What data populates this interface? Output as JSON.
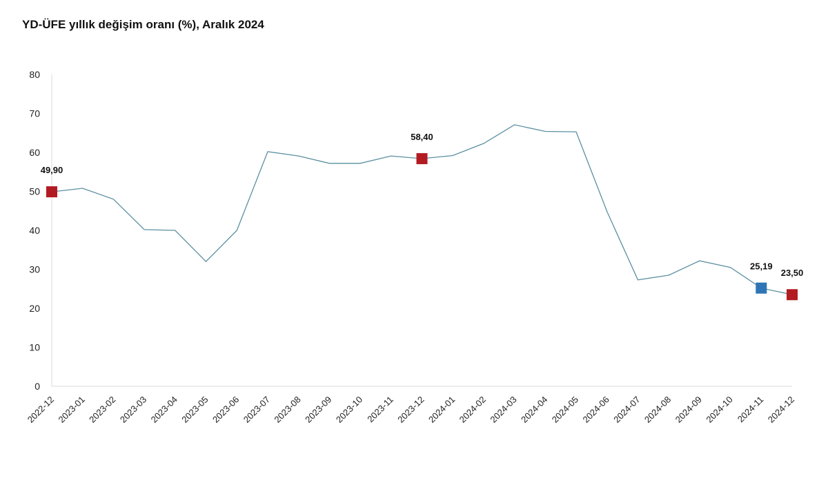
{
  "chart_data": {
    "type": "line",
    "title": "YD-ÜFE yıllık değişim oranı (%), Aralık 2024",
    "x": [
      "2022-12",
      "2023-01",
      "2023-02",
      "2023-03",
      "2023-04",
      "2023-05",
      "2023-06",
      "2023-07",
      "2023-08",
      "2023-09",
      "2023-10",
      "2023-11",
      "2023-12",
      "2024-01",
      "2024-02",
      "2024-03",
      "2024-04",
      "2024-05",
      "2024-06",
      "2024-07",
      "2024-08",
      "2024-09",
      "2024-10",
      "2024-11",
      "2024-12"
    ],
    "series": [
      {
        "values": [
          49.9,
          50.8,
          48.0,
          40.2,
          40.0,
          32.0,
          40.0,
          60.2,
          59.1,
          57.2,
          57.2,
          59.1,
          58.4,
          59.2,
          62.3,
          67.1,
          65.4,
          65.3,
          44.8,
          27.3,
          28.5,
          32.2,
          30.5,
          25.19,
          23.5
        ]
      }
    ],
    "ylim": [
      0,
      80
    ],
    "yticks": [
      0,
      10,
      20,
      30,
      40,
      50,
      60,
      70,
      80
    ],
    "grid": false,
    "line_color": "#5b8fa0",
    "highlights": [
      {
        "index": 0,
        "label": "49,90",
        "color": "#b31b22"
      },
      {
        "index": 12,
        "label": "58,40",
        "color": "#b31b22"
      },
      {
        "index": 23,
        "label": "25,19",
        "color": "#2e75b6"
      },
      {
        "index": 24,
        "label": "23,50",
        "color": "#b31b22"
      }
    ]
  }
}
